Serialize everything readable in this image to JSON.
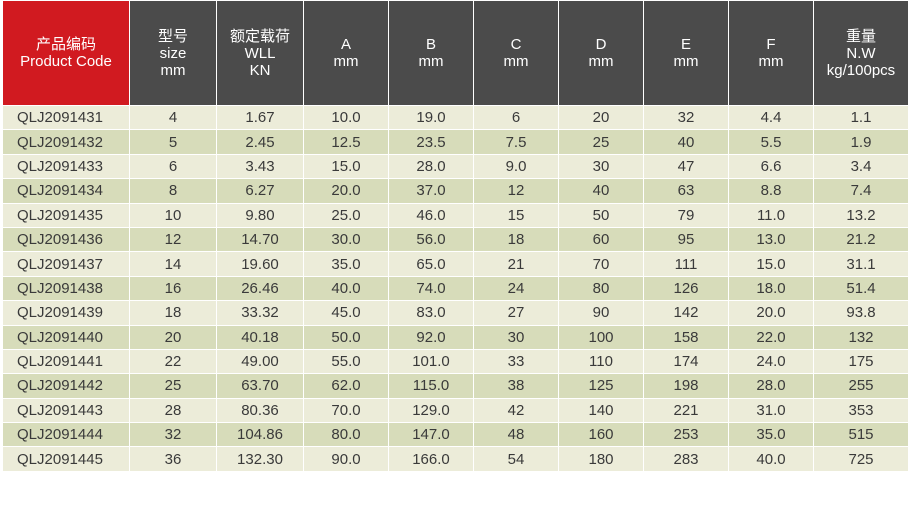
{
  "headers": [
    {
      "lines": [
        "产品编码",
        "Product Code"
      ]
    },
    {
      "lines": [
        "型号",
        "size",
        "mm"
      ]
    },
    {
      "lines": [
        "额定载荷",
        "WLL",
        "KN"
      ]
    },
    {
      "lines": [
        "A",
        "mm"
      ]
    },
    {
      "lines": [
        "B",
        "mm"
      ]
    },
    {
      "lines": [
        "C",
        "mm"
      ]
    },
    {
      "lines": [
        "D",
        "mm"
      ]
    },
    {
      "lines": [
        "E",
        "mm"
      ]
    },
    {
      "lines": [
        "F",
        "mm"
      ]
    },
    {
      "lines": [
        "重量",
        "N.W",
        "kg/100pcs"
      ]
    }
  ],
  "rows": [
    [
      "QLJ2091431",
      "4",
      "1.67",
      "10.0",
      "19.0",
      "6",
      "20",
      "32",
      "4.4",
      "1.1"
    ],
    [
      "QLJ2091432",
      "5",
      "2.45",
      "12.5",
      "23.5",
      "7.5",
      "25",
      "40",
      "5.5",
      "1.9"
    ],
    [
      "QLJ2091433",
      "6",
      "3.43",
      "15.0",
      "28.0",
      "9.0",
      "30",
      "47",
      "6.6",
      "3.4"
    ],
    [
      "QLJ2091434",
      "8",
      "6.27",
      "20.0",
      "37.0",
      "12",
      "40",
      "63",
      "8.8",
      "7.4"
    ],
    [
      "QLJ2091435",
      "10",
      "9.80",
      "25.0",
      "46.0",
      "15",
      "50",
      "79",
      "11.0",
      "13.2"
    ],
    [
      "QLJ2091436",
      "12",
      "14.70",
      "30.0",
      "56.0",
      "18",
      "60",
      "95",
      "13.0",
      "21.2"
    ],
    [
      "QLJ2091437",
      "14",
      "19.60",
      "35.0",
      "65.0",
      "21",
      "70",
      "111",
      "15.0",
      "31.1"
    ],
    [
      "QLJ2091438",
      "16",
      "26.46",
      "40.0",
      "74.0",
      "24",
      "80",
      "126",
      "18.0",
      "51.4"
    ],
    [
      "QLJ2091439",
      "18",
      "33.32",
      "45.0",
      "83.0",
      "27",
      "90",
      "142",
      "20.0",
      "93.8"
    ],
    [
      "QLJ2091440",
      "20",
      "40.18",
      "50.0",
      "92.0",
      "30",
      "100",
      "158",
      "22.0",
      "132"
    ],
    [
      "QLJ2091441",
      "22",
      "49.00",
      "55.0",
      "101.0",
      "33",
      "110",
      "174",
      "24.0",
      "175"
    ],
    [
      "QLJ2091442",
      "25",
      "63.70",
      "62.0",
      "115.0",
      "38",
      "125",
      "198",
      "28.0",
      "255"
    ],
    [
      "QLJ2091443",
      "28",
      "80.36",
      "70.0",
      "129.0",
      "42",
      "140",
      "221",
      "31.0",
      "353"
    ],
    [
      "QLJ2091444",
      "32",
      "104.86",
      "80.0",
      "147.0",
      "48",
      "160",
      "253",
      "35.0",
      "515"
    ],
    [
      "QLJ2091445",
      "36",
      "132.30",
      "90.0",
      "166.0",
      "54",
      "180",
      "283",
      "40.0",
      "725"
    ]
  ],
  "colors": {
    "header_bg": "#4b4b4b",
    "code_header_bg": "#d11a20",
    "row_light": "#ececd9",
    "row_dark": "#d7dcba"
  }
}
